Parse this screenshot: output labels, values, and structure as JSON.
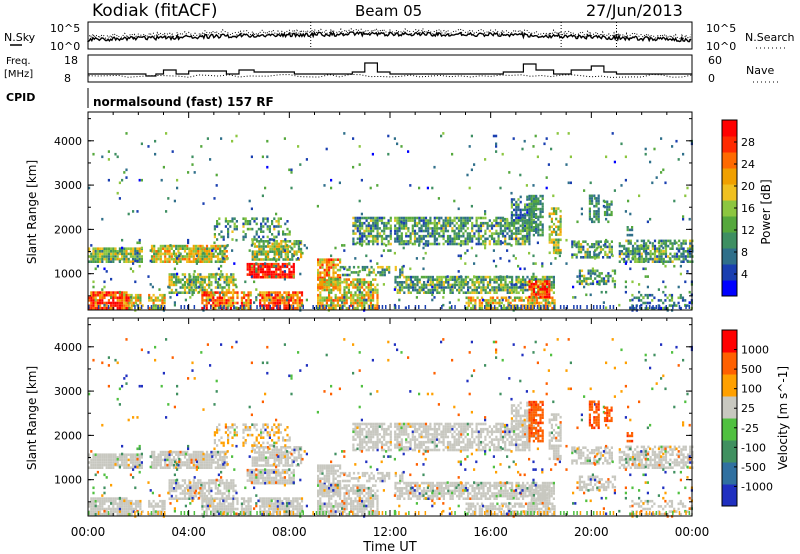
{
  "header": {
    "radar": "Kodiak (fitACF)",
    "beam": "Beam 05",
    "date": "27/Jun/2013"
  },
  "noise_panel": {
    "left_label": "N.Sky",
    "right_label": "N.Search",
    "left_ticks": [
      "10^5",
      "10^0"
    ],
    "right_ticks": [
      "10^5",
      "10^0"
    ]
  },
  "freq_panel": {
    "left_label_1": "Freq.",
    "left_label_2": "[MHz]",
    "right_label": "Nave",
    "left_ticks": [
      "18",
      "8"
    ],
    "right_ticks": [
      "60",
      "0"
    ]
  },
  "cpid": {
    "label": "CPID",
    "text": "normalsound (fast) 157 RF"
  },
  "chart_data": [
    {
      "type": "heatmap",
      "name": "power",
      "ylabel": "Slant Range [km]",
      "xlabel": "",
      "y_ticks": [
        "4000",
        "3000",
        "2000",
        "1000"
      ],
      "y_tick_values": [
        4000,
        3000,
        2000,
        1000
      ],
      "ylim": [
        180,
        4650
      ],
      "colorbar": {
        "label": "Power [dB]",
        "ticks": [
          "28",
          "24",
          "20",
          "16",
          "12",
          "8",
          "4"
        ],
        "colors": [
          "#0000ff",
          "#1a3fb0",
          "#2f6f8a",
          "#3e8f62",
          "#55a83c",
          "#8cc640",
          "#f0c020",
          "#f0a000",
          "#ff6a00",
          "#ff2a00",
          "#ff0000"
        ]
      }
    },
    {
      "type": "heatmap",
      "name": "velocity",
      "ylabel": "Slant Range [km]",
      "xlabel": "Time UT",
      "y_ticks": [
        "4000",
        "3000",
        "2000",
        "1000"
      ],
      "y_tick_values": [
        4000,
        3000,
        2000,
        1000
      ],
      "ylim": [
        180,
        4650
      ],
      "x_ticks": [
        "00:00",
        "04:00",
        "08:00",
        "12:00",
        "16:00",
        "20:00",
        "00:00"
      ],
      "x_tick_hours": [
        0,
        4,
        8,
        12,
        16,
        20,
        24
      ],
      "colorbar": {
        "label": "Velocity [m s^-1]",
        "ticks": [
          "1000",
          "500",
          "100",
          "25",
          "-25",
          "-100",
          "-500",
          "-1000"
        ],
        "colors": [
          "#2030c0",
          "#3070a0",
          "#409060",
          "#50c040",
          "#c8c8c0",
          "#ffa000",
          "#ff6000",
          "#ff0000"
        ]
      }
    }
  ]
}
